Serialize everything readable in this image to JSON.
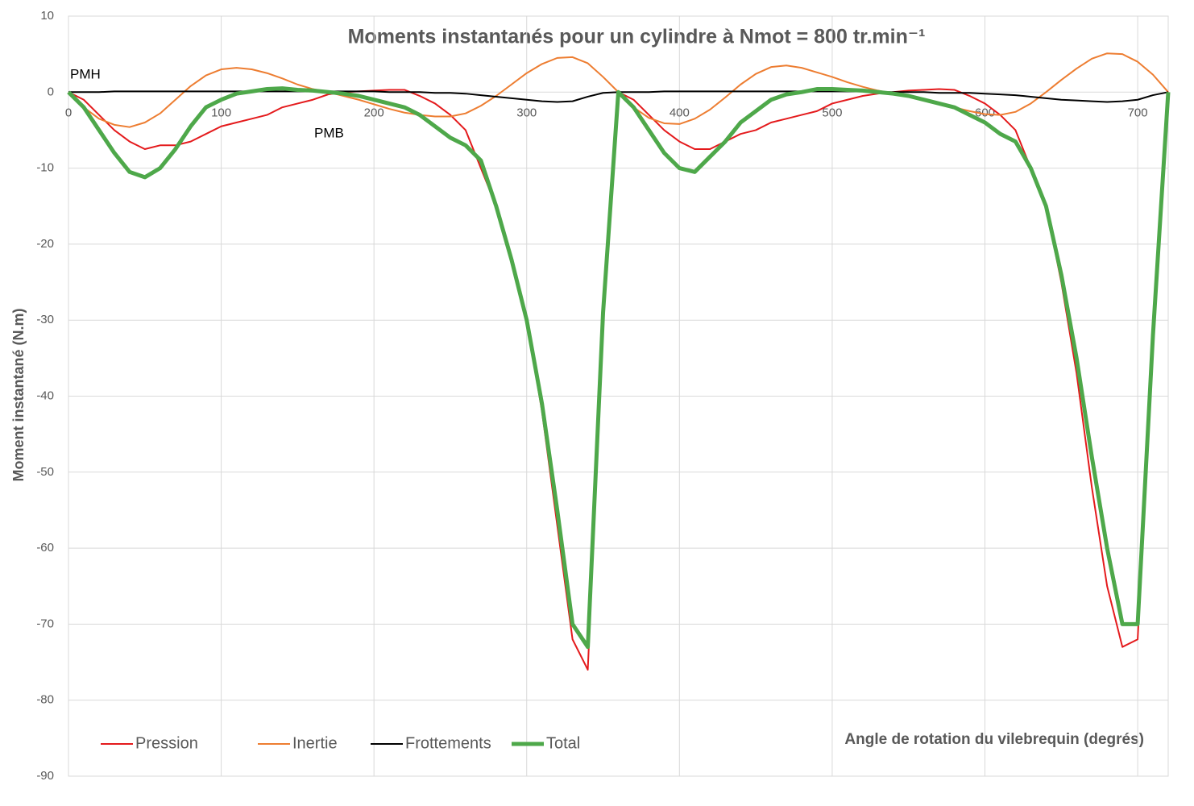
{
  "chart_data": {
    "type": "line",
    "title": "Moments instantanés pour un cylindre à Nmot = 800 tr.min⁻¹",
    "x_label": "Angle de rotation du vilebrequin (degrés)",
    "y_label": "Moment instantané (N.m)",
    "annotations": [
      "PMH",
      "PMB"
    ],
    "x": [
      0,
      10,
      20,
      30,
      40,
      50,
      60,
      70,
      80,
      90,
      100,
      110,
      120,
      130,
      140,
      150,
      160,
      170,
      180,
      190,
      200,
      210,
      220,
      230,
      240,
      250,
      260,
      270,
      280,
      290,
      300,
      310,
      320,
      330,
      340,
      350,
      360,
      370,
      380,
      390,
      400,
      410,
      420,
      430,
      440,
      450,
      460,
      470,
      480,
      490,
      500,
      510,
      520,
      530,
      540,
      550,
      560,
      570,
      580,
      590,
      600,
      610,
      620,
      630,
      640,
      650,
      660,
      670,
      680,
      690,
      700,
      710,
      720
    ],
    "series": [
      {
        "name": "Pression",
        "color": "#e41a1c",
        "width": 2,
        "values": [
          0,
          -1,
          -3,
          -5,
          -6.5,
          -7.5,
          -7,
          -7,
          -6.5,
          -5.5,
          -4.5,
          -4,
          -3.5,
          -3,
          -2,
          -1.5,
          -1,
          -0.3,
          0,
          0.1,
          0.2,
          0.3,
          0.3,
          -0.5,
          -1.5,
          -3,
          -5,
          -10,
          -15,
          -22,
          -30,
          -42,
          -57,
          -72,
          -76,
          -30,
          0,
          -1,
          -3,
          -5,
          -6.5,
          -7.5,
          -7.5,
          -6.5,
          -5.5,
          -5,
          -4,
          -3.5,
          -3,
          -2.5,
          -1.5,
          -1,
          -0.5,
          -0.2,
          0,
          0.2,
          0.3,
          0.4,
          0.3,
          -0.5,
          -1.5,
          -3,
          -5,
          -10,
          -15,
          -25,
          -37,
          -52,
          -65,
          -73,
          -72,
          -32,
          0
        ]
      },
      {
        "name": "Inertie",
        "color": "#ed7d31",
        "width": 2,
        "values": [
          0,
          -2,
          -3.5,
          -4.3,
          -4.6,
          -4,
          -2.8,
          -1,
          0.8,
          2.2,
          3,
          3.2,
          3,
          2.5,
          1.8,
          1,
          0.4,
          0,
          -0.5,
          -1,
          -1.6,
          -2.2,
          -2.7,
          -3,
          -3.2,
          -3.2,
          -2.8,
          -1.8,
          -0.5,
          1,
          2.5,
          3.7,
          4.5,
          4.6,
          3.8,
          2,
          0,
          -2,
          -3.4,
          -4.1,
          -4.2,
          -3.5,
          -2.3,
          -0.7,
          1,
          2.4,
          3.3,
          3.5,
          3.2,
          2.6,
          2,
          1.3,
          0.7,
          0.2,
          -0.2,
          -0.6,
          -1,
          -1.5,
          -2,
          -2.5,
          -2.9,
          -3,
          -2.6,
          -1.5,
          0,
          1.6,
          3.1,
          4.4,
          5.1,
          5,
          4,
          2.3,
          0
        ]
      },
      {
        "name": "Frottements",
        "color": "#000000",
        "width": 2,
        "values": [
          0,
          0,
          0,
          0.1,
          0.1,
          0.1,
          0.1,
          0.1,
          0.1,
          0.1,
          0.1,
          0.1,
          0.1,
          0.1,
          0.1,
          0.1,
          0.1,
          0.1,
          0.1,
          0.1,
          0.1,
          0,
          0,
          0,
          -0.1,
          -0.1,
          -0.2,
          -0.4,
          -0.6,
          -0.8,
          -1,
          -1.2,
          -1.3,
          -1.2,
          -0.6,
          -0.1,
          0,
          0,
          0,
          0.1,
          0.1,
          0.1,
          0.1,
          0.1,
          0.1,
          0.1,
          0.1,
          0.1,
          0.1,
          0.1,
          0.1,
          0.1,
          0.1,
          0,
          0,
          0,
          0,
          -0.1,
          -0.1,
          -0.1,
          -0.2,
          -0.3,
          -0.4,
          -0.6,
          -0.8,
          -1,
          -1.1,
          -1.2,
          -1.3,
          -1.2,
          -1,
          -0.4,
          0
        ]
      },
      {
        "name": "Total",
        "color": "#4ea84a",
        "width": 5,
        "values": [
          0,
          -2,
          -5,
          -8,
          -10.5,
          -11.2,
          -10,
          -7.5,
          -4.5,
          -2,
          -1,
          -0.2,
          0.1,
          0.4,
          0.5,
          0.3,
          0.2,
          0,
          -0.2,
          -0.5,
          -1,
          -1.5,
          -2,
          -3,
          -4.5,
          -6,
          -7,
          -9,
          -15,
          -22,
          -30,
          -41,
          -55,
          -70,
          -73,
          -29,
          0,
          -2,
          -5,
          -8,
          -10,
          -10.5,
          -8.5,
          -6.5,
          -4,
          -2.5,
          -1,
          -0.3,
          0,
          0.4,
          0.4,
          0.3,
          0.2,
          0,
          -0.2,
          -0.5,
          -1,
          -1.5,
          -2,
          -3,
          -4,
          -5.5,
          -6.5,
          -10,
          -15,
          -24,
          -35,
          -48,
          -60,
          -70,
          -70,
          -32,
          0
        ]
      }
    ],
    "xlim": [
      0,
      720
    ],
    "xticks": [
      0,
      100,
      200,
      300,
      400,
      500,
      600,
      700
    ],
    "ylim": [
      -90,
      10
    ],
    "yticks": [
      10,
      0,
      -10,
      -20,
      -30,
      -40,
      -50,
      -60,
      -70,
      -80,
      -90
    ],
    "grid": true,
    "legend": "lower left"
  }
}
